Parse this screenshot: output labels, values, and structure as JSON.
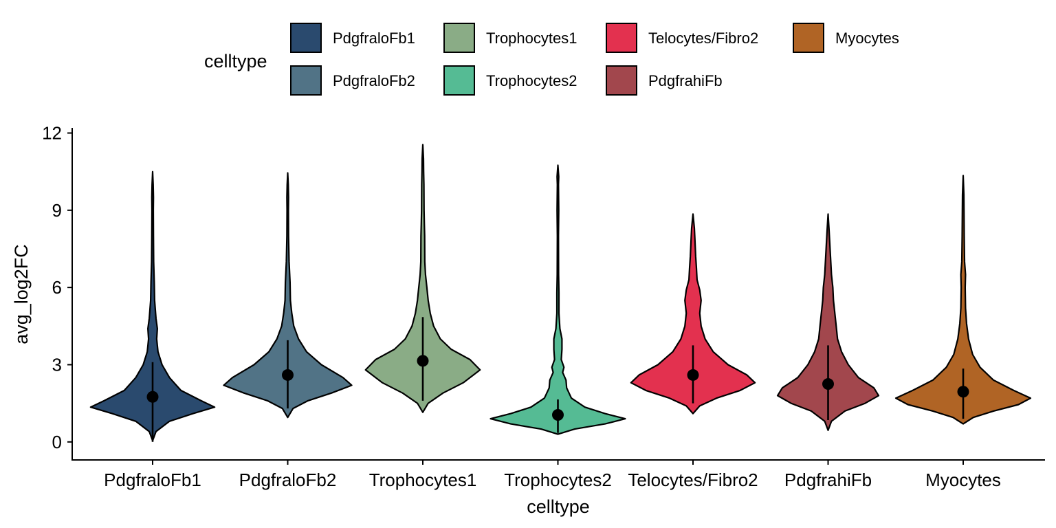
{
  "chart_data": {
    "type": "violin",
    "title": "",
    "xlabel": "celltype",
    "ylabel": "avg_log2FC",
    "ylim": [
      -0.7,
      12.2
    ],
    "yticks": [
      "0",
      "3",
      "6",
      "9",
      "12"
    ],
    "grid": false,
    "legend": {
      "title": "celltype",
      "position": "top"
    },
    "categories": [
      "PdgfraloFb1",
      "PdgfraloFb2",
      "Trophocytes1",
      "Trophocytes2",
      "Telocytes/Fibro2",
      "PdgfrahiFb",
      "Myocytes"
    ],
    "colors": [
      "#2a4a6e",
      "#517386",
      "#8aac86",
      "#55bb94",
      "#e3314f",
      "#a2474d",
      "#b06425"
    ],
    "series": [
      {
        "name": "PdgfraloFb1",
        "point": 1.75,
        "whisker_low": 0.0,
        "whisker_high": 3.1,
        "min": 0.05,
        "max": 10.5,
        "density": [
          [
            0.05,
            0.0
          ],
          [
            0.4,
            0.05
          ],
          [
            0.8,
            0.25
          ],
          [
            1.1,
            0.6
          ],
          [
            1.35,
            0.92
          ],
          [
            1.6,
            0.72
          ],
          [
            2.0,
            0.42
          ],
          [
            2.5,
            0.25
          ],
          [
            3.0,
            0.14
          ],
          [
            3.5,
            0.08
          ],
          [
            4.0,
            0.06
          ],
          [
            4.4,
            0.07
          ],
          [
            4.8,
            0.05
          ],
          [
            5.5,
            0.03
          ],
          [
            6.2,
            0.025
          ],
          [
            7.0,
            0.015
          ],
          [
            8.0,
            0.012
          ],
          [
            9.0,
            0.01
          ],
          [
            9.5,
            0.012
          ],
          [
            10.0,
            0.008
          ],
          [
            10.5,
            0.0
          ]
        ]
      },
      {
        "name": "PdgfraloFb2",
        "point": 2.6,
        "whisker_low": 1.3,
        "whisker_high": 3.95,
        "min": 0.95,
        "max": 10.45,
        "density": [
          [
            0.95,
            0.0
          ],
          [
            1.3,
            0.08
          ],
          [
            1.6,
            0.3
          ],
          [
            1.9,
            0.65
          ],
          [
            2.2,
            0.95
          ],
          [
            2.5,
            0.82
          ],
          [
            3.0,
            0.5
          ],
          [
            3.5,
            0.28
          ],
          [
            4.0,
            0.16
          ],
          [
            4.5,
            0.09
          ],
          [
            5.0,
            0.06
          ],
          [
            5.5,
            0.04
          ],
          [
            6.2,
            0.035
          ],
          [
            7.0,
            0.02
          ],
          [
            8.0,
            0.012
          ],
          [
            9.0,
            0.01
          ],
          [
            9.5,
            0.012
          ],
          [
            10.0,
            0.008
          ],
          [
            10.45,
            0.0
          ]
        ]
      },
      {
        "name": "Trophocytes1",
        "point": 3.15,
        "whisker_low": 1.6,
        "whisker_high": 4.85,
        "min": 1.15,
        "max": 11.55,
        "density": [
          [
            1.15,
            0.0
          ],
          [
            1.5,
            0.08
          ],
          [
            1.9,
            0.3
          ],
          [
            2.3,
            0.6
          ],
          [
            2.8,
            0.85
          ],
          [
            3.2,
            0.7
          ],
          [
            3.6,
            0.42
          ],
          [
            4.0,
            0.26
          ],
          [
            4.5,
            0.16
          ],
          [
            5.0,
            0.11
          ],
          [
            5.5,
            0.08
          ],
          [
            6.0,
            0.06
          ],
          [
            6.5,
            0.04
          ],
          [
            7.0,
            0.03
          ],
          [
            8.0,
            0.028
          ],
          [
            8.5,
            0.022
          ],
          [
            9.0,
            0.018
          ],
          [
            10.0,
            0.016
          ],
          [
            10.5,
            0.012
          ],
          [
            11.0,
            0.01
          ],
          [
            11.55,
            0.0
          ]
        ]
      },
      {
        "name": "Trophocytes2",
        "point": 1.05,
        "whisker_low": 0.35,
        "whisker_high": 1.65,
        "min": 0.3,
        "max": 10.75,
        "density": [
          [
            0.3,
            0.0
          ],
          [
            0.5,
            0.25
          ],
          [
            0.7,
            0.7
          ],
          [
            0.9,
            1.0
          ],
          [
            1.1,
            0.7
          ],
          [
            1.35,
            0.4
          ],
          [
            1.7,
            0.2
          ],
          [
            2.1,
            0.13
          ],
          [
            2.4,
            0.12
          ],
          [
            2.7,
            0.07
          ],
          [
            2.9,
            0.09
          ],
          [
            3.2,
            0.05
          ],
          [
            3.6,
            0.06
          ],
          [
            4.0,
            0.06
          ],
          [
            4.4,
            0.03
          ],
          [
            5.0,
            0.015
          ],
          [
            5.8,
            0.015
          ],
          [
            6.5,
            0.01
          ],
          [
            8.0,
            0.008
          ],
          [
            9.0,
            0.012
          ],
          [
            10.0,
            0.008
          ],
          [
            10.3,
            0.012
          ],
          [
            10.75,
            0.0
          ]
        ]
      },
      {
        "name": "Telocytes/Fibro2",
        "point": 2.6,
        "whisker_low": 1.5,
        "whisker_high": 3.75,
        "min": 1.1,
        "max": 8.85,
        "density": [
          [
            1.1,
            0.0
          ],
          [
            1.4,
            0.1
          ],
          [
            1.7,
            0.35
          ],
          [
            2.0,
            0.7
          ],
          [
            2.3,
            0.92
          ],
          [
            2.6,
            0.8
          ],
          [
            3.0,
            0.52
          ],
          [
            3.5,
            0.3
          ],
          [
            4.0,
            0.18
          ],
          [
            4.5,
            0.12
          ],
          [
            5.0,
            0.1
          ],
          [
            5.5,
            0.12
          ],
          [
            5.9,
            0.1
          ],
          [
            6.3,
            0.06
          ],
          [
            6.8,
            0.05
          ],
          [
            7.2,
            0.04
          ],
          [
            7.8,
            0.03
          ],
          [
            8.3,
            0.02
          ],
          [
            8.85,
            0.0
          ]
        ]
      },
      {
        "name": "PdgfrahiFb",
        "point": 2.25,
        "whisker_low": 0.85,
        "whisker_high": 3.75,
        "min": 0.45,
        "max": 8.85,
        "density": [
          [
            0.45,
            0.0
          ],
          [
            0.8,
            0.05
          ],
          [
            1.2,
            0.25
          ],
          [
            1.5,
            0.55
          ],
          [
            1.8,
            0.75
          ],
          [
            2.1,
            0.68
          ],
          [
            2.5,
            0.45
          ],
          [
            3.0,
            0.3
          ],
          [
            3.5,
            0.2
          ],
          [
            4.0,
            0.14
          ],
          [
            4.5,
            0.12
          ],
          [
            5.0,
            0.1
          ],
          [
            5.5,
            0.08
          ],
          [
            6.0,
            0.07
          ],
          [
            6.5,
            0.05
          ],
          [
            7.0,
            0.04
          ],
          [
            7.5,
            0.03
          ],
          [
            8.2,
            0.015
          ],
          [
            8.85,
            0.0
          ]
        ]
      },
      {
        "name": "Myocytes",
        "point": 1.95,
        "whisker_low": 0.9,
        "whisker_high": 2.85,
        "min": 0.7,
        "max": 10.35,
        "density": [
          [
            0.7,
            0.0
          ],
          [
            0.95,
            0.15
          ],
          [
            1.2,
            0.45
          ],
          [
            1.45,
            0.82
          ],
          [
            1.7,
            1.0
          ],
          [
            2.0,
            0.75
          ],
          [
            2.4,
            0.45
          ],
          [
            2.9,
            0.25
          ],
          [
            3.4,
            0.14
          ],
          [
            4.0,
            0.08
          ],
          [
            4.6,
            0.05
          ],
          [
            5.2,
            0.035
          ],
          [
            6.0,
            0.03
          ],
          [
            6.5,
            0.035
          ],
          [
            7.0,
            0.02
          ],
          [
            8.0,
            0.015
          ],
          [
            9.0,
            0.012
          ],
          [
            9.6,
            0.01
          ],
          [
            10.35,
            0.0
          ]
        ]
      }
    ]
  }
}
